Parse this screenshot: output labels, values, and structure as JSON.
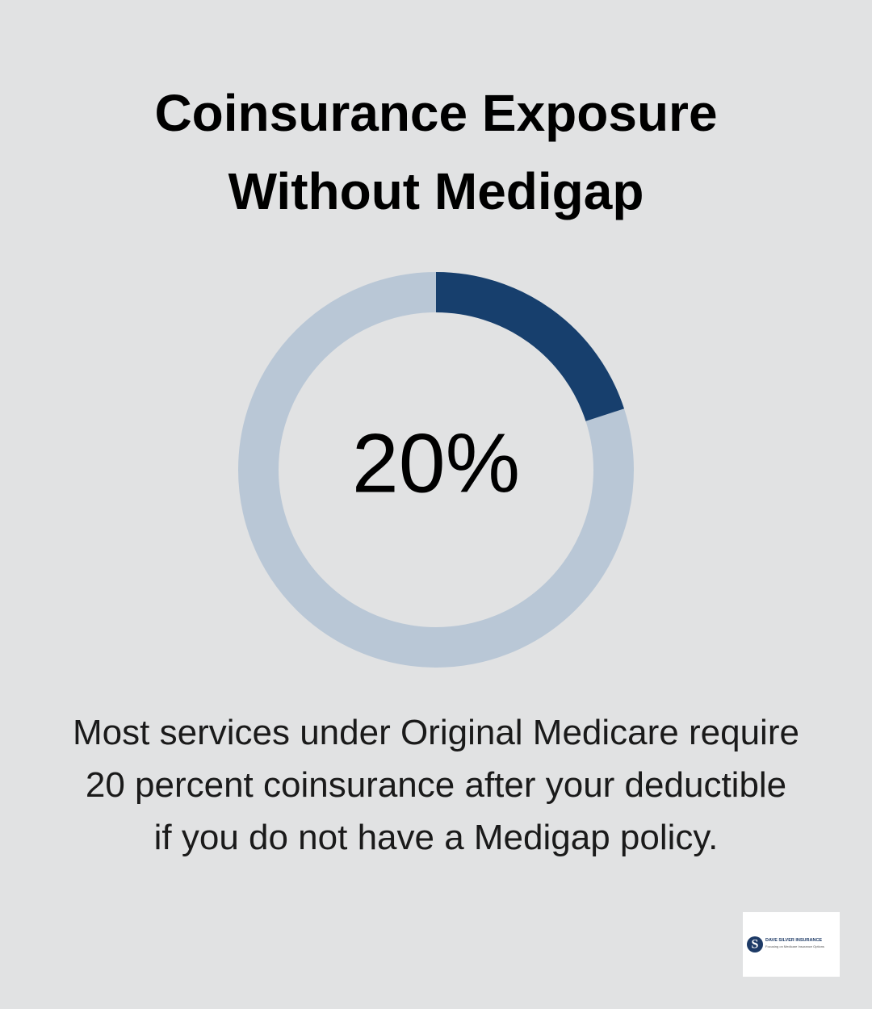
{
  "chart_data": {
    "type": "gauge",
    "title": "Coinsurance Exposure Without Medigap",
    "value": 20,
    "value_label": "20%",
    "ylim": [
      0,
      100
    ],
    "color": "#173f6d",
    "track_color": "#b9c7d6",
    "description": [
      "Most services under Original Medicare require",
      "20 percent coinsurance after your deductible",
      "if you do not have a Medigap policy."
    ]
  },
  "logo": {
    "name": "DAVE SILVER INSURANCE",
    "tagline": "Focusing on Medicare Insurance Options"
  }
}
